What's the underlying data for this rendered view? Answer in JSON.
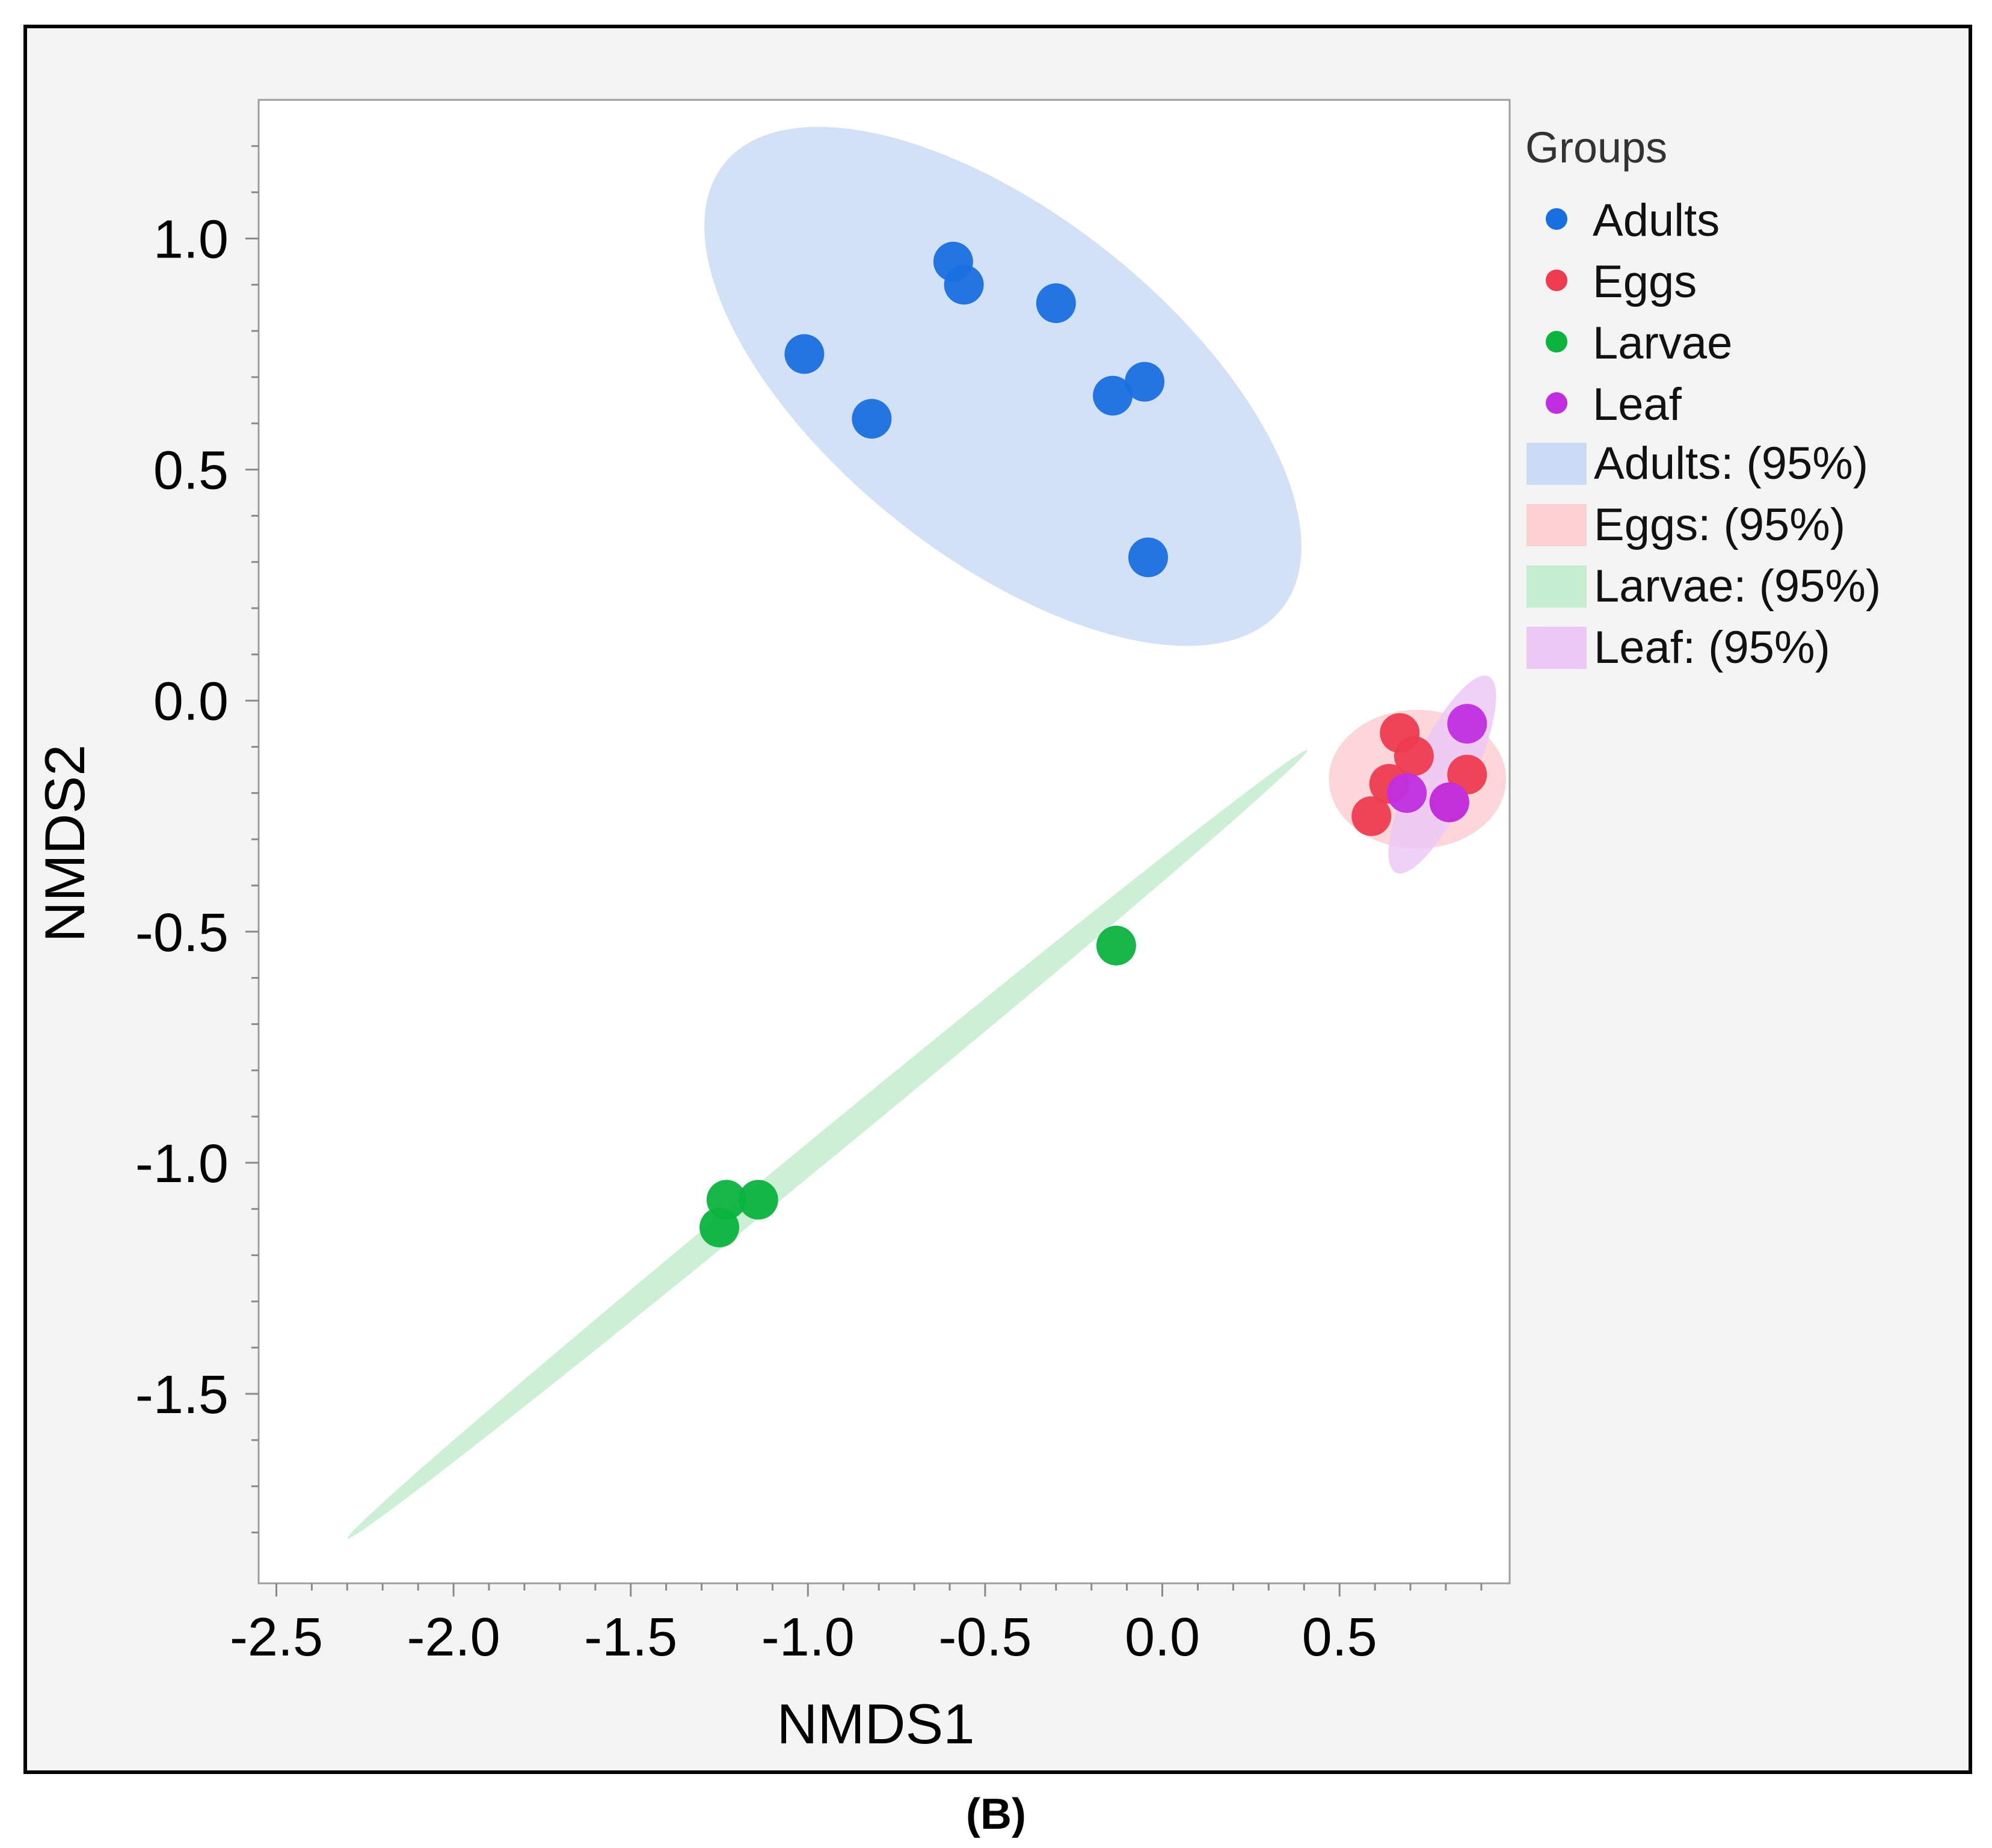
{
  "chart_data": {
    "type": "scatter",
    "title": "",
    "xlabel": "NMDS1",
    "ylabel": "NMDS2",
    "xlim": [
      -2.55,
      0.98
    ],
    "ylim": [
      -1.91,
      1.3
    ],
    "xticks": [
      -2.5,
      -2.0,
      -1.5,
      -1.0,
      -0.5,
      0.0,
      0.5
    ],
    "xtick_labels": [
      "-2.5",
      "-2.0",
      "-1.5",
      "-1.0",
      "-0.5",
      "0.0",
      "0.5"
    ],
    "yticks": [
      -1.5,
      -1.0,
      -0.5,
      0.0,
      0.5,
      1.0
    ],
    "ytick_labels": [
      "-1.5",
      "-1.0",
      "-0.5",
      "0.0",
      "0.5",
      "1.0"
    ],
    "grid": false,
    "legend_position": "right",
    "legend_title": "Groups",
    "series": [
      {
        "name": "Adults",
        "color": "#1a6fe0",
        "x": [
          -0.59,
          -0.56,
          -0.3,
          -1.01,
          -0.82,
          -0.14,
          -0.05,
          -0.04
        ],
        "y": [
          0.95,
          0.9,
          0.86,
          0.75,
          0.61,
          0.66,
          0.69,
          0.31
        ]
      },
      {
        "name": "Eggs",
        "color": "#ee3b50",
        "x": [
          0.67,
          0.71,
          0.64,
          0.86,
          0.81,
          0.59
        ],
        "y": [
          -0.07,
          -0.12,
          -0.18,
          -0.16,
          -0.22,
          -0.25
        ]
      },
      {
        "name": "Larvae",
        "color": "#0ab33e",
        "x": [
          -0.13,
          -1.23,
          -1.14,
          -1.25
        ],
        "y": [
          -0.53,
          -1.08,
          -1.08,
          -1.14
        ]
      },
      {
        "name": "Leaf",
        "color": "#c02ee0",
        "x": [
          0.86,
          0.69,
          0.81
        ],
        "y": [
          -0.05,
          -0.2,
          -0.22
        ]
      }
    ],
    "ellipses": [
      {
        "name": "Adults",
        "label": "Adults: (95%)",
        "color": "#cbdcf6",
        "cx": -0.45,
        "cy": 0.68,
        "rx": 0.93,
        "ry": 0.4,
        "angle_deg": -28
      },
      {
        "name": "Eggs",
        "label": "Eggs: (95%)",
        "color": "#fccfd2",
        "cx": 0.72,
        "cy": -0.17,
        "rx": 0.25,
        "ry": 0.15,
        "angle_deg": 0
      },
      {
        "name": "Larvae",
        "label": "Larvae: (95%)",
        "color": "#c4eccf",
        "cx": -0.945,
        "cy": -0.96,
        "rx": 1.6,
        "ry": 0.032,
        "angle_deg": 32.2
      },
      {
        "name": "Leaf",
        "label": "Leaf: (95%)",
        "color": "#ecc8f4",
        "cx": 0.79,
        "cy": -0.16,
        "rx": 0.25,
        "ry": 0.08,
        "angle_deg": 57
      }
    ]
  },
  "figure": {
    "caption": "(B)"
  }
}
